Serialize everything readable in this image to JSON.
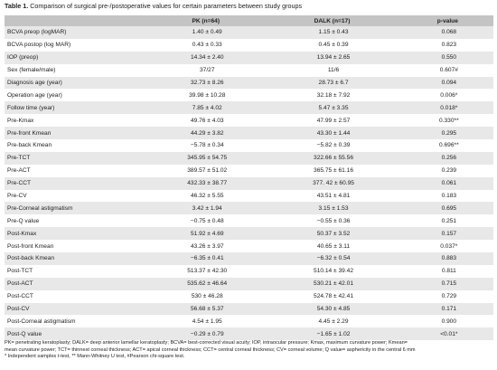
{
  "caption": {
    "label": "Table 1.",
    "text": "Comparison of surgical pre-/postoperative values for certain parameters between study groups"
  },
  "table": {
    "headers": [
      "",
      "PK (n=64)",
      "DALK (n=17)",
      "p-value"
    ],
    "rows": [
      [
        "BCVA preop (logMAR)",
        "1.40 ± 0.49",
        "1.15 ± 0.43",
        "0.068"
      ],
      [
        "BCVA postop (log MAR)",
        "0.43 ± 0.33",
        "0.45 ± 0.39",
        "0.823"
      ],
      [
        "IOP (preop)",
        "14.34 ± 2.40",
        "13.94 ± 2.65",
        "0.550"
      ],
      [
        "Sex (female/male)",
        "37/27",
        "11/6",
        "0.607#"
      ],
      [
        "Diagnosis age (year)",
        "32.73 ± 8.26",
        "28.73 ± 6.7",
        "0.094"
      ],
      [
        "Operation age (year)",
        "39.98 ± 10.28",
        "32.18 ± 7.92",
        "0.006*"
      ],
      [
        "Follow time (year)",
        "7.85 ± 4.02",
        "5.47 ± 3.35",
        "0.018*"
      ],
      [
        "Pre-Kmax",
        "49.76 ± 4.03",
        "47.99 ± 2.57",
        "0.330**"
      ],
      [
        "Pre-front Kmean",
        "44.29 ± 3.82",
        "43.30 ± 1.44",
        "0.295"
      ],
      [
        "Pre-back Kmean",
        "−5.78 ± 0.34",
        "−5.82 ± 0.39",
        "0.696**"
      ],
      [
        "Pre-TCT",
        "345.95 ± 54.75",
        "322.66 ± 55.56",
        "0.256"
      ],
      [
        "Pre-ACT",
        "389.57 ± 51.02",
        "365.75 ± 61.16",
        "0.239"
      ],
      [
        "Pre-CCT",
        "432.33 ± 38.77",
        "377. 42 ± 60.95",
        "0.061"
      ],
      [
        "Pre-CV",
        "46.32 ± 5.55",
        "43.51 ± 4.81",
        "0.183"
      ],
      [
        "Pre-Corneal astigmatism",
        "3.42 ± 1.94",
        "3.15 ± 1.53",
        "0.695"
      ],
      [
        "Pre-Q value",
        "−0.75 ± 0.48",
        "−0.55 ± 0.36",
        "0.251"
      ],
      [
        "Post-Kmax",
        "51.92 ± 4.69",
        "50.37 ± 3.52",
        "0.157"
      ],
      [
        "Post-front Kmean",
        "43.26 ± 3.97",
        "40.65 ± 3.11",
        "0.037*"
      ],
      [
        "Post-back Kmean",
        "−6.35 ± 0.41",
        "−6.32 ± 0.54",
        "0.883"
      ],
      [
        "Post-TCT",
        "513.37 ± 42.30",
        "510.14 ± 39.42",
        "0.811"
      ],
      [
        "Post-ACT",
        "535.62 ± 46.64",
        "530.21 ± 42.01",
        "0.715"
      ],
      [
        "Post-CCT",
        "530 ± 46.28",
        "524.78 ± 42.41",
        "0.729"
      ],
      [
        "Post-CV",
        "56.68 ± 5.37",
        "54.30 ± 4.85",
        "0.171"
      ],
      [
        "Post-Corneal astigmatism",
        "4.54 ± 1.95",
        "4.45 ± 2.29",
        "0.900"
      ],
      [
        "Post-Q value",
        "−0.29 ± 0.79",
        "−1.65 ± 1.02",
        "<0.01*"
      ]
    ]
  },
  "footnotes": [
    "PK= penetrating keratoplasty; DALK= deep anterior lamellar keratoplasty; BCVA= best-corrected visual acuity; IOP, intraocular pressure; Kmax, maximum curvature power; Kmean=",
    "mean curvature power; TCT= thinnest corneal thickness; ACT= apical corneal thickness; CCT= central corneal thickness; CV= corneal volume; Q value= asphericity in the central 6 mm",
    "* Independent samples t-test, ** Mann-Whitney U test, #Pearson chi-square test."
  ]
}
